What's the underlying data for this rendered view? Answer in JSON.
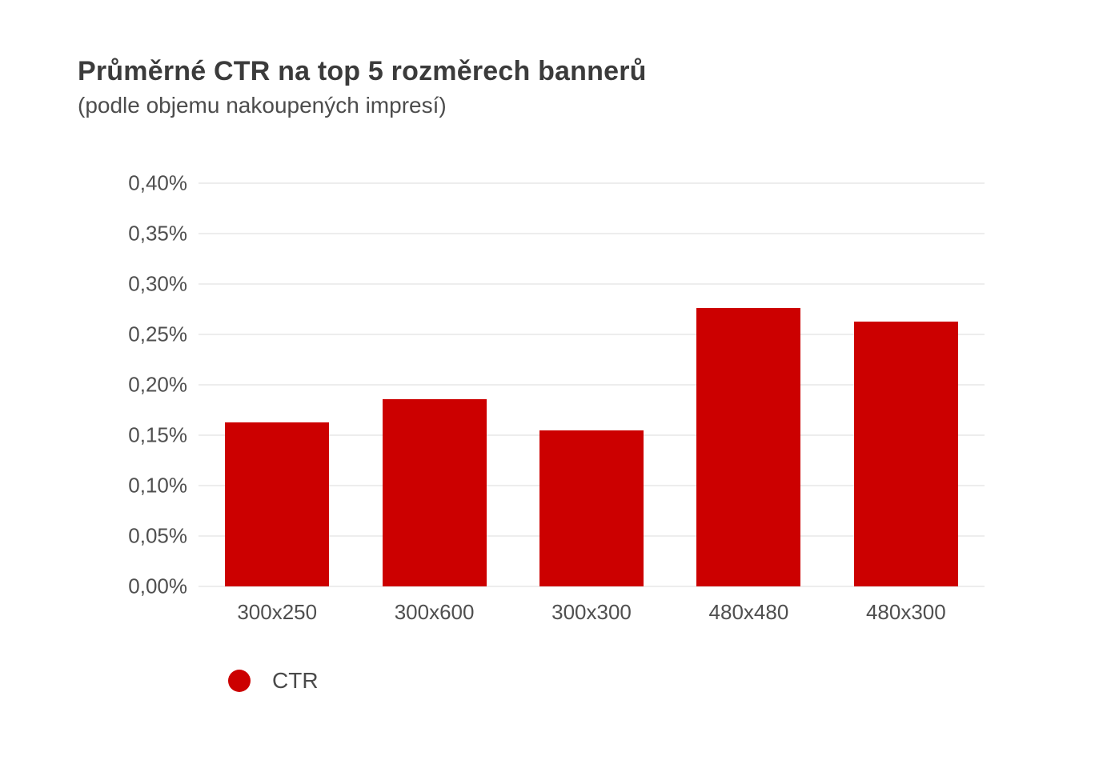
{
  "header": {
    "title": "Průměrné CTR na top 5 rozměrech bannerů",
    "subtitle": "(podle objemu nakoupených impresí)"
  },
  "legend": {
    "label": "CTR",
    "marker": "circle",
    "marker_color": "#CC0000"
  },
  "colors": {
    "bar": "#CC0000",
    "title_text": "#3B3B3B",
    "axis_text": "#4F4F4F",
    "gridline": "#EDEDED",
    "background": "#FFFFFF"
  },
  "chart_data": {
    "type": "bar",
    "title": "Průměrné CTR na top 5 rozměrech bannerů",
    "subtitle": "(podle objemu nakoupených impresí)",
    "categories": [
      "300x250",
      "300x600",
      "300x300",
      "480x480",
      "480x300"
    ],
    "series": [
      {
        "name": "CTR",
        "color": "#CC0000",
        "values": [
          0.163,
          0.186,
          0.155,
          0.276,
          0.263
        ]
      }
    ],
    "value_unit": "%",
    "xlabel": "",
    "ylabel": "",
    "ylim": [
      0,
      0.4
    ],
    "ytick_labels": [
      "0,00%",
      "0,05%",
      "0,10%",
      "0,15%",
      "0,20%",
      "0,25%",
      "0,30%",
      "0,35%",
      "0,40%"
    ],
    "grid": true,
    "legend_position": "bottom-left"
  }
}
